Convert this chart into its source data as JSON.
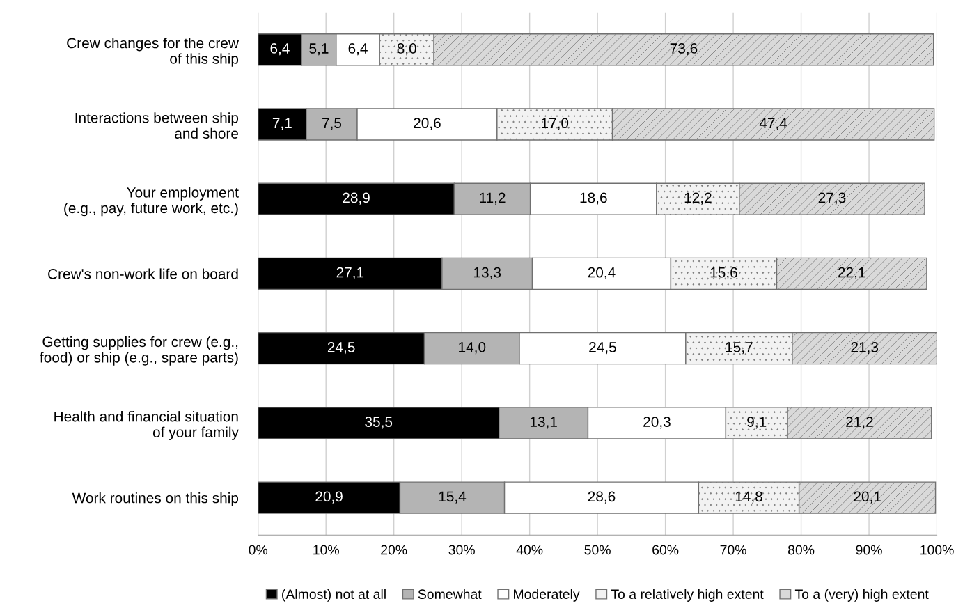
{
  "chart_data": {
    "type": "bar",
    "orientation": "horizontal",
    "stacked": true,
    "categories": [
      "Crew changes for the crew\nof this ship",
      "Interactions between ship\nand shore",
      "Your employment\n(e.g., pay, future work, etc.)",
      "Crew's non-work life on board",
      "Getting supplies for crew (e.g.,\nfood) or ship (e.g., spare parts)",
      "Health and financial situation\nof your family",
      "Work routines on this ship"
    ],
    "series": [
      {
        "name": "(Almost) not at all",
        "color": "#000000",
        "values": [
          6.4,
          7.1,
          28.9,
          27.1,
          24.5,
          35.5,
          20.9
        ],
        "value_labels": [
          "6,4",
          "7,1",
          "28,9",
          "27,1",
          "24,5",
          "35,5",
          "20,9"
        ]
      },
      {
        "name": "Somewhat",
        "color": "#b4b4b4",
        "values": [
          5.1,
          7.5,
          11.2,
          13.3,
          14.0,
          13.1,
          15.4
        ],
        "value_labels": [
          "5,1",
          "7,5",
          "11,2",
          "13,3",
          "14,0",
          "13,1",
          "15,4"
        ]
      },
      {
        "name": "Moderately",
        "color": "#ffffff",
        "values": [
          6.4,
          20.6,
          18.6,
          20.4,
          24.5,
          20.3,
          28.6
        ],
        "value_labels": [
          "6,4",
          "20,6",
          "18,6",
          "20,4",
          "24,5",
          "20,3",
          "28,6"
        ]
      },
      {
        "name": "To a relatively high extent",
        "color": "#f2f2f2",
        "values": [
          8.0,
          17.0,
          12.2,
          15.6,
          15.7,
          9.1,
          14.8
        ],
        "value_labels": [
          "8,0",
          "17,0",
          "12,2",
          "15,6",
          "15,7",
          "9,1",
          "14,8"
        ]
      },
      {
        "name": "To a (very) high extent",
        "color": "#d9d9d9",
        "values": [
          73.6,
          47.4,
          27.3,
          22.1,
          21.3,
          21.2,
          20.1
        ],
        "value_labels": [
          "73,6",
          "47,4",
          "27,3",
          "22,1",
          "21,3",
          "21,2",
          "20,1"
        ]
      }
    ],
    "xlim": [
      0,
      100
    ],
    "xticks": [
      {
        "value": 0,
        "label": "0%"
      },
      {
        "value": 10,
        "label": "10%"
      },
      {
        "value": 20,
        "label": "20%"
      },
      {
        "value": 30,
        "label": "30%"
      },
      {
        "value": 40,
        "label": "40%"
      },
      {
        "value": 50,
        "label": "50%"
      },
      {
        "value": 60,
        "label": "60%"
      },
      {
        "value": 70,
        "label": "70%"
      },
      {
        "value": 80,
        "label": "80%"
      },
      {
        "value": 90,
        "label": "90%"
      },
      {
        "value": 100,
        "label": "100%"
      }
    ],
    "grid": "x",
    "legend": "bottom"
  }
}
